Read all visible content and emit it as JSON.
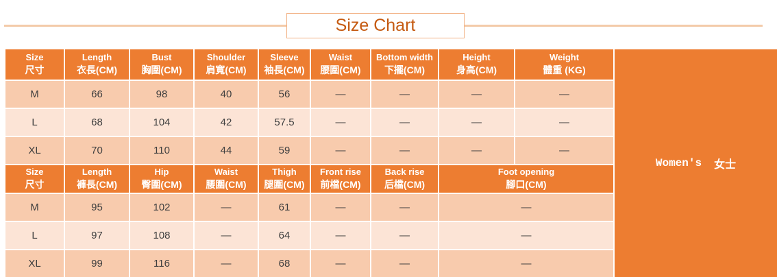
{
  "title": "Size Chart",
  "panel": {
    "en": "Women's",
    "zh": "女士"
  },
  "chart_data": [
    {
      "type": "table",
      "name": "tops-size-table",
      "columns": [
        {
          "en": "Size",
          "zh": "尺寸"
        },
        {
          "en": "Length",
          "zh": "衣長(CM)"
        },
        {
          "en": "Bust",
          "zh": "胸圍(CM)"
        },
        {
          "en": "Shoulder",
          "zh": "肩寬(CM)"
        },
        {
          "en": "Sleeve",
          "zh": "袖長(CM)"
        },
        {
          "en": "Waist",
          "zh": "腰圍(CM)"
        },
        {
          "en": "Bottom width",
          "zh": "下擺(CM)"
        },
        {
          "en": "Height",
          "zh": "身高(CM)"
        },
        {
          "en": "Weight",
          "zh": "體重 (KG)"
        }
      ],
      "rows": [
        [
          "M",
          "66",
          "98",
          "40",
          "56",
          "—",
          "—",
          "—",
          "—"
        ],
        [
          "L",
          "68",
          "104",
          "42",
          "57.5",
          "—",
          "—",
          "—",
          "—"
        ],
        [
          "XL",
          "70",
          "110",
          "44",
          "59",
          "—",
          "—",
          "—",
          "—"
        ]
      ]
    },
    {
      "type": "table",
      "name": "bottoms-size-table",
      "columns": [
        {
          "en": "Size",
          "zh": "尺寸"
        },
        {
          "en": "Length",
          "zh": "褲長(CM)"
        },
        {
          "en": "Hip",
          "zh": "臀圍(CM)"
        },
        {
          "en": "Waist",
          "zh": "腰圍(CM)"
        },
        {
          "en": "Thigh",
          "zh": "腿圍(CM)"
        },
        {
          "en": "Front rise",
          "zh": "前檔(CM)"
        },
        {
          "en": "Back rise",
          "zh": "后檔(CM)"
        },
        {
          "en": "Foot opening",
          "zh": "腳口(CM)",
          "span": 2
        }
      ],
      "rows": [
        [
          "M",
          "95",
          "102",
          "—",
          "61",
          "—",
          "—",
          "—"
        ],
        [
          "L",
          "97",
          "108",
          "—",
          "64",
          "—",
          "—",
          "—"
        ],
        [
          "XL",
          "99",
          "116",
          "—",
          "68",
          "—",
          "—",
          "—"
        ]
      ]
    }
  ],
  "colors": {
    "header_orange": "#ED7D31",
    "panel_orange": "#ED7D31",
    "row_peach": "#F8CBAD",
    "row_light": "#FCE4D6",
    "title_text": "#C55A11",
    "title_border": "#F2B183",
    "rule_line": "#F3CBA9",
    "cell_text": "#3F3F3F",
    "header_text": "#FFFFFF"
  }
}
